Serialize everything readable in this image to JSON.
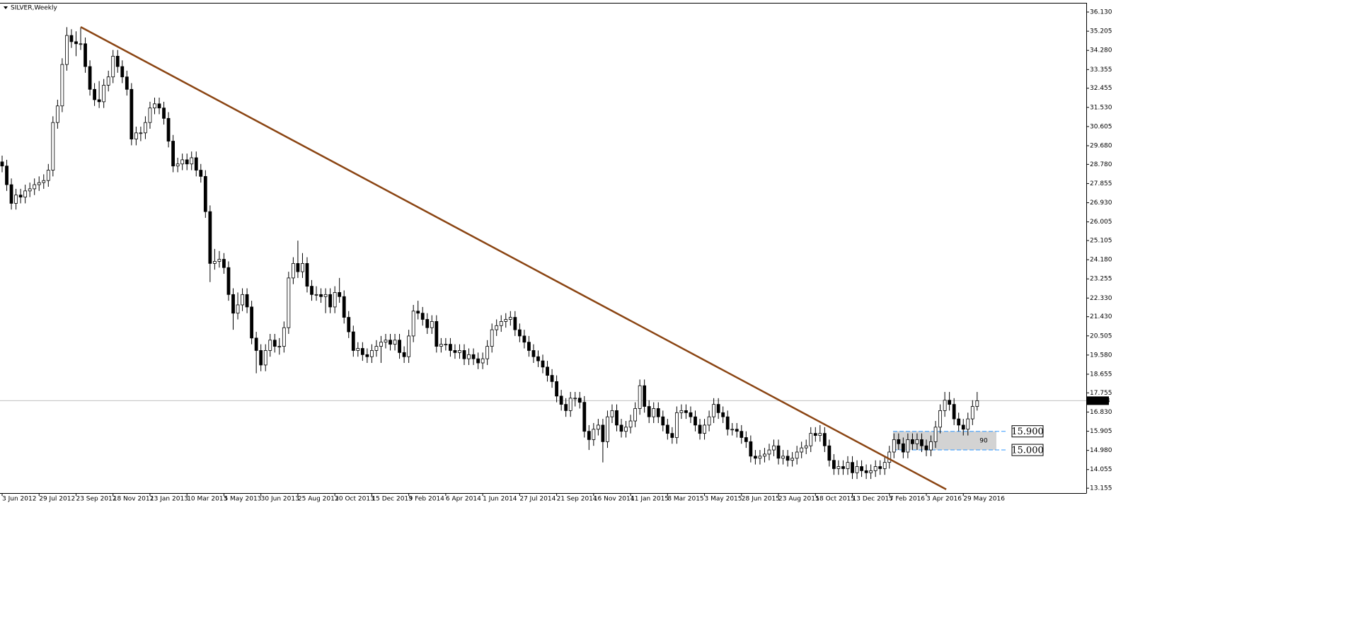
{
  "chart_data": {
    "type": "candlestick",
    "title": "SILVER,Weekly",
    "ylim": [
      12.92,
      36.54
    ],
    "yticks": [
      {
        "value": 36.13,
        "label": "36.130"
      },
      35.205,
      {
        "value": 34.28,
        "label": "34.280"
      },
      33.355,
      32.455,
      {
        "value": 31.53,
        "label": "31.530"
      },
      30.605,
      {
        "value": 29.68,
        "label": "29.680"
      },
      {
        "value": 28.78,
        "label": "28.780"
      },
      27.855,
      {
        "value": 26.93,
        "label": "26.930"
      },
      26.005,
      25.105,
      {
        "value": 24.18,
        "label": "24.180"
      },
      23.255,
      {
        "value": 22.33,
        "label": "22.330"
      },
      {
        "value": 21.43,
        "label": "21.430"
      },
      20.505,
      {
        "value": 19.58,
        "label": "19.580"
      },
      18.655,
      17.755,
      {
        "value": 16.83,
        "label": "16.830"
      },
      15.905,
      {
        "value": 14.98,
        "label": "14.980"
      },
      14.055,
      13.155
    ],
    "categories": [
      "3 Jun 2012",
      null,
      null,
      null,
      null,
      null,
      null,
      null,
      "29 Jul 2012",
      null,
      null,
      null,
      null,
      null,
      null,
      null,
      "23 Sep 2012",
      null,
      null,
      null,
      null,
      null,
      null,
      null,
      "18 Nov 2012",
      null,
      null,
      null,
      null,
      null,
      null,
      null,
      "13 Jan 2013",
      null,
      null,
      null,
      null,
      null,
      null,
      null,
      "10 Mar 2013",
      null,
      null,
      null,
      null,
      null,
      null,
      null,
      "5 May 2013",
      null,
      null,
      null,
      null,
      null,
      null,
      null,
      "30 Jun 2013",
      null,
      null,
      null,
      null,
      null,
      null,
      null,
      "25 Aug 2013",
      null,
      null,
      null,
      null,
      null,
      null,
      null,
      "20 Oct 2013",
      null,
      null,
      null,
      null,
      null,
      null,
      null,
      "15 Dec 2013",
      null,
      null,
      null,
      null,
      null,
      null,
      null,
      "9 Feb 2014",
      null,
      null,
      null,
      null,
      null,
      null,
      null,
      "6 Apr 2014",
      null,
      null,
      null,
      null,
      null,
      null,
      null,
      "1 Jun 2014",
      null,
      null,
      null,
      null,
      null,
      null,
      null,
      "27 Jul 2014",
      null,
      null,
      null,
      null,
      null,
      null,
      null,
      "21 Sep 2014",
      null,
      null,
      null,
      null,
      null,
      null,
      null,
      "16 Nov 2014",
      null,
      null,
      null,
      null,
      null,
      null,
      null,
      "11 Jan 2015",
      null,
      null,
      null,
      null,
      null,
      null,
      null,
      "8 Mar 2015",
      null,
      null,
      null,
      null,
      null,
      null,
      null,
      "3 May 2015",
      null,
      null,
      null,
      null,
      null,
      null,
      null,
      "28 Jun 2015",
      null,
      null,
      null,
      null,
      null,
      null,
      null,
      "23 Aug 2015",
      null,
      null,
      null,
      null,
      null,
      null,
      null,
      "18 Oct 2015",
      null,
      null,
      null,
      null,
      null,
      null,
      null,
      "13 Dec 2015",
      null,
      null,
      null,
      null,
      null,
      null,
      null,
      "7 Feb 2016",
      null,
      null,
      null,
      null,
      null,
      null,
      null,
      "3 Apr 2016",
      null,
      null,
      null,
      null,
      null,
      null,
      null,
      "29 May 2016",
      null,
      null,
      null
    ],
    "ohlc": [
      [
        28.9,
        29.2,
        28.4,
        28.7
      ],
      [
        28.7,
        29.0,
        27.5,
        27.8
      ],
      [
        27.8,
        28.1,
        26.6,
        26.9
      ],
      [
        26.9,
        27.6,
        26.6,
        27.3
      ],
      [
        27.3,
        27.6,
        26.9,
        27.2
      ],
      [
        27.2,
        27.8,
        26.9,
        27.5
      ],
      [
        27.5,
        27.9,
        27.2,
        27.6
      ],
      [
        27.6,
        28.1,
        27.3,
        27.8
      ],
      [
        27.8,
        28.2,
        27.5,
        27.9
      ],
      [
        27.9,
        28.3,
        27.6,
        28.0
      ],
      [
        28.0,
        28.8,
        27.7,
        28.5
      ],
      [
        28.5,
        31.1,
        28.2,
        30.8
      ],
      [
        30.8,
        31.9,
        30.5,
        31.6
      ],
      [
        31.6,
        33.9,
        31.3,
        33.6
      ],
      [
        33.6,
        35.4,
        33.3,
        35.0
      ],
      [
        35.0,
        35.3,
        34.4,
        34.7
      ],
      [
        34.7,
        35.2,
        34.0,
        34.6
      ],
      [
        34.6,
        35.4,
        34.3,
        34.6
      ],
      [
        34.6,
        34.9,
        33.2,
        33.5
      ],
      [
        33.5,
        33.8,
        32.1,
        32.4
      ],
      [
        32.4,
        32.7,
        31.6,
        31.9
      ],
      [
        31.9,
        32.8,
        31.5,
        31.8
      ],
      [
        31.8,
        32.9,
        31.5,
        32.6
      ],
      [
        32.6,
        33.3,
        32.3,
        33.0
      ],
      [
        33.0,
        34.3,
        32.7,
        34.0
      ],
      [
        34.0,
        34.3,
        33.2,
        33.5
      ],
      [
        33.5,
        33.8,
        32.7,
        33.0
      ],
      [
        33.0,
        33.3,
        32.1,
        32.4
      ],
      [
        32.4,
        32.7,
        29.7,
        30.0
      ],
      [
        30.0,
        30.6,
        29.7,
        30.3
      ],
      [
        30.3,
        30.6,
        29.9,
        30.3
      ],
      [
        30.3,
        31.1,
        30.0,
        30.8
      ],
      [
        30.8,
        31.8,
        30.5,
        31.5
      ],
      [
        31.5,
        32.0,
        31.2,
        31.7
      ],
      [
        31.7,
        32.0,
        31.2,
        31.5
      ],
      [
        31.5,
        31.8,
        30.7,
        31.0
      ],
      [
        31.0,
        31.3,
        29.6,
        29.9
      ],
      [
        29.9,
        30.2,
        28.4,
        28.7
      ],
      [
        28.7,
        29.1,
        28.4,
        28.8
      ],
      [
        28.8,
        29.3,
        28.5,
        29.0
      ],
      [
        29.0,
        29.3,
        28.5,
        28.8
      ],
      [
        28.8,
        29.4,
        28.5,
        29.1
      ],
      [
        29.1,
        29.4,
        28.2,
        28.5
      ],
      [
        28.5,
        28.8,
        27.9,
        28.2
      ],
      [
        28.2,
        28.5,
        26.2,
        26.5
      ],
      [
        26.5,
        26.8,
        23.1,
        24.0
      ],
      [
        24.0,
        24.7,
        23.7,
        24.1
      ],
      [
        24.1,
        24.6,
        23.8,
        24.2
      ],
      [
        24.2,
        24.5,
        23.5,
        23.8
      ],
      [
        23.8,
        24.1,
        22.2,
        22.5
      ],
      [
        22.5,
        22.8,
        20.8,
        21.6
      ],
      [
        21.6,
        22.6,
        21.3,
        22.0
      ],
      [
        22.0,
        22.8,
        21.7,
        22.5
      ],
      [
        22.5,
        22.8,
        21.6,
        21.9
      ],
      [
        21.9,
        22.2,
        20.1,
        20.4
      ],
      [
        20.4,
        20.7,
        18.7,
        19.8
      ],
      [
        19.8,
        20.1,
        18.8,
        19.1
      ],
      [
        19.1,
        20.1,
        18.8,
        19.8
      ],
      [
        19.8,
        20.6,
        19.5,
        20.3
      ],
      [
        20.3,
        20.6,
        19.7,
        20.0
      ],
      [
        20.0,
        20.4,
        19.6,
        20.0
      ],
      [
        20.0,
        21.2,
        19.7,
        20.9
      ],
      [
        20.9,
        23.6,
        20.6,
        23.3
      ],
      [
        23.3,
        24.3,
        23.0,
        24.0
      ],
      [
        24.0,
        25.1,
        23.3,
        23.6
      ],
      [
        23.6,
        24.5,
        23.3,
        24.0
      ],
      [
        24.0,
        24.3,
        22.6,
        22.9
      ],
      [
        22.9,
        23.2,
        22.2,
        22.5
      ],
      [
        22.5,
        22.9,
        22.2,
        22.5
      ],
      [
        22.5,
        22.8,
        22.1,
        22.4
      ],
      [
        22.4,
        22.8,
        21.6,
        22.5
      ],
      [
        22.5,
        22.8,
        21.6,
        21.9
      ],
      [
        21.9,
        22.9,
        21.6,
        22.6
      ],
      [
        22.6,
        23.3,
        22.1,
        22.4
      ],
      [
        22.4,
        22.7,
        21.1,
        21.4
      ],
      [
        21.4,
        21.7,
        20.4,
        20.7
      ],
      [
        20.7,
        21.0,
        19.5,
        19.8
      ],
      [
        19.8,
        20.2,
        19.5,
        19.9
      ],
      [
        19.9,
        20.2,
        19.3,
        19.6
      ],
      [
        19.6,
        19.9,
        19.2,
        19.5
      ],
      [
        19.5,
        20.1,
        19.2,
        19.8
      ],
      [
        19.8,
        20.3,
        19.5,
        20.0
      ],
      [
        20.0,
        20.5,
        19.2,
        20.2
      ],
      [
        20.2,
        20.6,
        19.9,
        20.3
      ],
      [
        20.3,
        20.6,
        19.8,
        20.1
      ],
      [
        20.1,
        20.6,
        19.8,
        20.3
      ],
      [
        20.3,
        20.6,
        19.4,
        19.7
      ],
      [
        19.7,
        20.0,
        19.2,
        19.5
      ],
      [
        19.5,
        20.8,
        19.2,
        20.5
      ],
      [
        20.5,
        22.0,
        20.2,
        21.7
      ],
      [
        21.7,
        22.2,
        21.3,
        21.6
      ],
      [
        21.6,
        21.9,
        21.0,
        21.3
      ],
      [
        21.3,
        21.6,
        20.6,
        20.9
      ],
      [
        20.9,
        21.5,
        20.6,
        21.2
      ],
      [
        21.2,
        21.5,
        19.7,
        20.0
      ],
      [
        20.0,
        20.4,
        19.7,
        20.1
      ],
      [
        20.1,
        20.4,
        19.8,
        20.1
      ],
      [
        20.1,
        20.4,
        19.5,
        19.8
      ],
      [
        19.8,
        20.1,
        19.4,
        19.7
      ],
      [
        19.7,
        20.1,
        19.4,
        19.8
      ],
      [
        19.8,
        20.1,
        19.1,
        19.4
      ],
      [
        19.4,
        19.9,
        19.1,
        19.6
      ],
      [
        19.6,
        19.9,
        19.1,
        19.4
      ],
      [
        19.4,
        19.7,
        18.9,
        19.2
      ],
      [
        19.2,
        19.7,
        18.9,
        19.4
      ],
      [
        19.4,
        20.3,
        19.1,
        20.0
      ],
      [
        20.0,
        21.1,
        19.7,
        20.8
      ],
      [
        20.8,
        21.3,
        20.5,
        21.0
      ],
      [
        21.0,
        21.5,
        20.7,
        21.2
      ],
      [
        21.2,
        21.6,
        20.9,
        21.3
      ],
      [
        21.3,
        21.7,
        21.0,
        21.4
      ],
      [
        21.4,
        21.7,
        20.5,
        20.8
      ],
      [
        20.8,
        21.1,
        20.2,
        20.5
      ],
      [
        20.5,
        20.8,
        19.9,
        20.2
      ],
      [
        20.2,
        20.5,
        19.5,
        19.8
      ],
      [
        19.8,
        20.1,
        19.2,
        19.5
      ],
      [
        19.5,
        19.8,
        19.0,
        19.3
      ],
      [
        19.3,
        19.6,
        18.7,
        19.0
      ],
      [
        19.0,
        19.3,
        18.3,
        18.6
      ],
      [
        18.6,
        18.9,
        18.0,
        18.3
      ],
      [
        18.3,
        18.6,
        17.3,
        17.6
      ],
      [
        17.6,
        17.9,
        16.9,
        17.2
      ],
      [
        17.2,
        17.5,
        16.6,
        16.9
      ],
      [
        16.9,
        17.8,
        16.6,
        17.5
      ],
      [
        17.5,
        17.8,
        17.1,
        17.5
      ],
      [
        17.5,
        17.8,
        17.0,
        17.3
      ],
      [
        17.3,
        17.6,
        15.6,
        15.9
      ],
      [
        15.9,
        16.2,
        15.0,
        15.5
      ],
      [
        15.5,
        16.3,
        15.2,
        16.0
      ],
      [
        16.0,
        16.5,
        15.7,
        16.2
      ],
      [
        16.2,
        16.5,
        14.4,
        15.4
      ],
      [
        15.4,
        16.9,
        15.1,
        16.6
      ],
      [
        16.6,
        17.2,
        16.3,
        16.9
      ],
      [
        16.9,
        17.2,
        15.9,
        16.2
      ],
      [
        16.2,
        16.5,
        15.6,
        15.9
      ],
      [
        15.9,
        16.4,
        15.6,
        16.1
      ],
      [
        16.1,
        16.7,
        15.8,
        16.4
      ],
      [
        16.4,
        17.3,
        16.1,
        17.0
      ],
      [
        17.0,
        18.4,
        16.7,
        18.1
      ],
      [
        18.1,
        18.4,
        16.8,
        17.1
      ],
      [
        17.1,
        17.4,
        16.3,
        16.6
      ],
      [
        16.6,
        17.3,
        16.3,
        17.0
      ],
      [
        17.0,
        17.3,
        16.3,
        16.6
      ],
      [
        16.6,
        16.9,
        15.9,
        16.2
      ],
      [
        16.2,
        16.5,
        15.5,
        15.8
      ],
      [
        15.8,
        16.1,
        15.3,
        15.6
      ],
      [
        15.6,
        17.1,
        15.3,
        16.8
      ],
      [
        16.8,
        17.2,
        16.5,
        16.9
      ],
      [
        16.9,
        17.2,
        16.5,
        16.8
      ],
      [
        16.8,
        17.1,
        16.3,
        16.6
      ],
      [
        16.6,
        16.9,
        15.9,
        16.2
      ],
      [
        16.2,
        16.5,
        15.5,
        15.8
      ],
      [
        15.8,
        16.5,
        15.5,
        16.2
      ],
      [
        16.2,
        16.9,
        15.9,
        16.6
      ],
      [
        16.6,
        17.5,
        16.3,
        17.2
      ],
      [
        17.2,
        17.5,
        16.5,
        16.8
      ],
      [
        16.8,
        17.1,
        16.3,
        16.6
      ],
      [
        16.6,
        16.9,
        15.7,
        16.0
      ],
      [
        16.0,
        16.3,
        15.7,
        16.0
      ],
      [
        16.0,
        16.3,
        15.6,
        15.9
      ],
      [
        15.9,
        16.2,
        15.3,
        15.6
      ],
      [
        15.6,
        15.9,
        15.1,
        15.4
      ],
      [
        15.4,
        15.7,
        14.4,
        14.7
      ],
      [
        14.7,
        15.0,
        14.3,
        14.6
      ],
      [
        14.6,
        15.0,
        14.3,
        14.7
      ],
      [
        14.7,
        15.1,
        14.4,
        14.8
      ],
      [
        14.8,
        15.3,
        14.5,
        15.0
      ],
      [
        15.0,
        15.5,
        14.7,
        15.2
      ],
      [
        15.2,
        15.5,
        14.3,
        14.6
      ],
      [
        14.6,
        15.0,
        14.3,
        14.7
      ],
      [
        14.7,
        15.0,
        14.2,
        14.5
      ],
      [
        14.5,
        14.9,
        14.2,
        14.6
      ],
      [
        14.6,
        15.2,
        14.3,
        14.9
      ],
      [
        14.9,
        15.4,
        14.6,
        15.1
      ],
      [
        15.1,
        15.5,
        14.8,
        15.2
      ],
      [
        15.2,
        16.1,
        14.9,
        15.8
      ],
      [
        15.8,
        16.1,
        15.4,
        15.7
      ],
      [
        15.7,
        16.2,
        15.4,
        15.8
      ],
      [
        15.8,
        16.1,
        14.9,
        15.2
      ],
      [
        15.2,
        15.5,
        14.2,
        14.5
      ],
      [
        14.5,
        14.8,
        13.8,
        14.1
      ],
      [
        14.1,
        14.5,
        13.8,
        14.2
      ],
      [
        14.2,
        14.5,
        13.8,
        14.1
      ],
      [
        14.1,
        14.7,
        13.8,
        14.4
      ],
      [
        14.4,
        14.7,
        13.6,
        13.9
      ],
      [
        13.9,
        14.5,
        13.6,
        14.2
      ],
      [
        14.2,
        14.5,
        13.7,
        14.0
      ],
      [
        14.0,
        14.3,
        13.6,
        13.9
      ],
      [
        13.9,
        14.3,
        13.6,
        14.0
      ],
      [
        14.0,
        14.5,
        13.7,
        14.2
      ],
      [
        14.2,
        14.5,
        13.8,
        14.1
      ],
      [
        14.1,
        14.7,
        13.8,
        14.4
      ],
      [
        14.4,
        15.2,
        14.1,
        14.9
      ],
      [
        14.9,
        15.8,
        14.6,
        15.5
      ],
      [
        15.5,
        15.8,
        15.0,
        15.3
      ],
      [
        15.3,
        15.6,
        14.6,
        14.9
      ],
      [
        14.9,
        15.8,
        14.6,
        15.5
      ],
      [
        15.5,
        15.8,
        15.0,
        15.3
      ],
      [
        15.3,
        15.8,
        15.0,
        15.5
      ],
      [
        15.5,
        15.8,
        14.9,
        15.2
      ],
      [
        15.2,
        15.5,
        14.7,
        15.0
      ],
      [
        15.0,
        15.7,
        14.7,
        15.4
      ],
      [
        15.4,
        16.4,
        15.1,
        16.1
      ],
      [
        16.1,
        17.2,
        15.8,
        16.9
      ],
      [
        16.9,
        17.8,
        16.6,
        17.4
      ],
      [
        17.4,
        17.8,
        16.9,
        17.2
      ],
      [
        17.2,
        17.5,
        16.2,
        16.5
      ],
      [
        16.5,
        16.8,
        15.9,
        16.2
      ],
      [
        16.2,
        16.5,
        15.7,
        16.0
      ],
      [
        16.0,
        16.8,
        15.7,
        16.5
      ],
      [
        16.5,
        17.4,
        16.2,
        17.1
      ],
      [
        17.1,
        17.8,
        16.9,
        17.378
      ]
    ],
    "last_price": 17.378,
    "trendline": {
      "color": "#8b4513",
      "points": [
        [
          17,
          35.41
        ],
        [
          204.3,
          13.1
        ]
      ]
    },
    "zone": {
      "values": [
        15.9,
        15.0
      ],
      "value_labels": [
        "15.900",
        "15.000"
      ],
      "label": "90",
      "color": "#d3d3d3",
      "line_color": "#3399ff"
    }
  }
}
